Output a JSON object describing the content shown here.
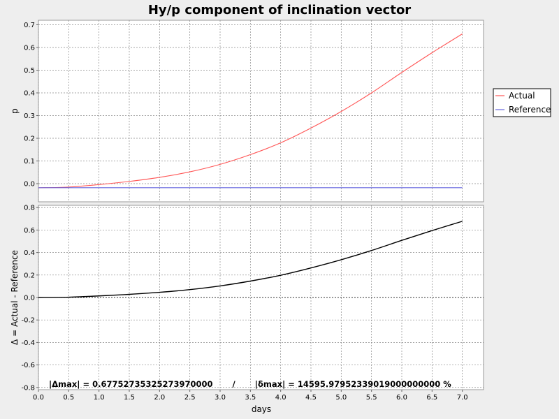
{
  "chart_data": {
    "type": "line",
    "title": "Hy/p component of inclination vector",
    "xlabel": "days",
    "grid": true,
    "legend_position": "right",
    "x_ticks": [
      "0.0",
      "0.5",
      "1.0",
      "1.5",
      "2.0",
      "2.5",
      "3.0",
      "3.5",
      "4.0",
      "4.5",
      "5.0",
      "5.5",
      "6.0",
      "6.5",
      "7.0"
    ],
    "panels": [
      {
        "ylabel": "p",
        "ylim": [
          -0.08,
          0.72
        ],
        "xlim": [
          0.0,
          7.35
        ],
        "y_ticks": [
          "0.7",
          "0.6",
          "0.5",
          "0.4",
          "0.3",
          "0.2",
          "0.1",
          "0.0"
        ],
        "series": [
          {
            "name": "Actual",
            "color": "#ff5555",
            "x": [
              0.0,
              0.5,
              1.0,
              1.5,
              2.0,
              2.5,
              3.0,
              3.5,
              4.0,
              4.5,
              5.0,
              5.5,
              6.0,
              6.5,
              7.0
            ],
            "y": [
              -0.018,
              -0.015,
              -0.004,
              0.01,
              0.028,
              0.052,
              0.085,
              0.128,
              0.18,
              0.245,
              0.318,
              0.4,
              0.49,
              0.577,
              0.66
            ]
          },
          {
            "name": "Reference",
            "color": "#6666dd",
            "x": [
              0.0,
              7.0
            ],
            "y": [
              -0.018,
              -0.018
            ]
          }
        ]
      },
      {
        "ylabel": "Δ = Actual - Reference",
        "ylim": [
          -0.82,
          0.82
        ],
        "xlim": [
          0.0,
          7.35
        ],
        "y_ticks": [
          "0.8",
          "0.6",
          "0.4",
          "0.2",
          "0.0",
          "-0.2",
          "-0.4",
          "-0.6",
          "-0.8"
        ],
        "zero_line": true,
        "series": [
          {
            "name": "Δ",
            "color": "#000000",
            "x": [
              0.0,
              0.5,
              1.0,
              1.5,
              2.0,
              2.5,
              3.0,
              3.5,
              4.0,
              4.5,
              5.0,
              5.5,
              6.0,
              6.5,
              7.0
            ],
            "y": [
              0.0,
              0.003,
              0.014,
              0.028,
              0.046,
              0.07,
              0.103,
              0.146,
              0.198,
              0.263,
              0.336,
              0.418,
              0.508,
              0.595,
              0.678
            ]
          }
        ],
        "annotation": "|Δmax| = 0.67752735325273970000       /       |δmax| = 14595.97952339019000000000 %"
      }
    ]
  }
}
